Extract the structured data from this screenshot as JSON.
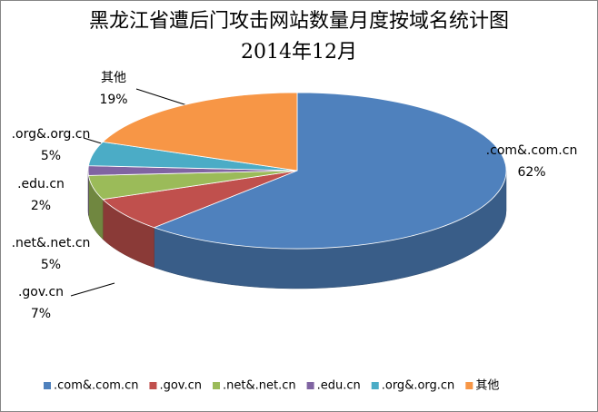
{
  "chart_data": {
    "type": "pie3d",
    "title": "黑龙江省遭后门攻击网站数量月度按域名统计图",
    "subtitle": "2014年12月",
    "categories": [
      ".com&.com.cn",
      ".gov.cn",
      ".net&.net.cn",
      ".edu.cn",
      ".org&.org.cn",
      "其他"
    ],
    "values": [
      62,
      7,
      5,
      2,
      5,
      19
    ],
    "value_labels": [
      "62%",
      "7%",
      "5%",
      "2%",
      "5%",
      "19%"
    ],
    "colors": [
      "#4f81bd",
      "#c0504d",
      "#9bbb59",
      "#8064a2",
      "#4bacc6",
      "#f79646"
    ],
    "legend": "bottom"
  }
}
